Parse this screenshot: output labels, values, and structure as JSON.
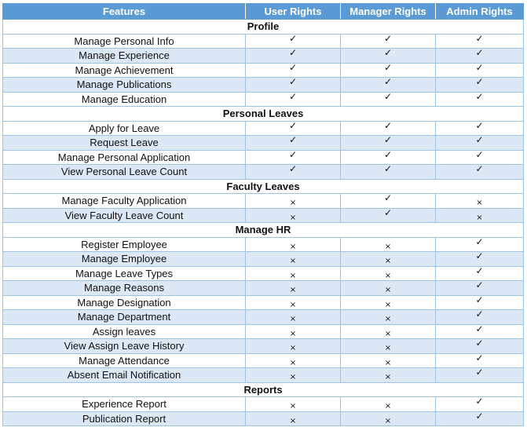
{
  "headers": [
    "Features",
    "User Rights",
    "Manager Rights",
    "Admin Rights"
  ],
  "symbols": {
    "yes": "✓",
    "no": "×"
  },
  "sections": [
    {
      "title": "Profile",
      "rows": [
        {
          "feature": "Manage Personal Info",
          "user": "yes",
          "manager": "yes",
          "admin": "yes"
        },
        {
          "feature": "Manage Experience",
          "user": "yes",
          "manager": "yes",
          "admin": "yes"
        },
        {
          "feature": "Manage Achievement",
          "user": "yes",
          "manager": "yes",
          "admin": "yes"
        },
        {
          "feature": "Manage Publications",
          "user": "yes",
          "manager": "yes",
          "admin": "yes"
        },
        {
          "feature": "Manage Education",
          "user": "yes",
          "manager": "yes",
          "admin": "yes"
        }
      ]
    },
    {
      "title": "Personal Leaves",
      "rows": [
        {
          "feature": "Apply for Leave",
          "user": "yes",
          "manager": "yes",
          "admin": "yes"
        },
        {
          "feature": "Request Leave",
          "user": "yes",
          "manager": "yes",
          "admin": "yes"
        },
        {
          "feature": "Manage Personal Application",
          "user": "yes",
          "manager": "yes",
          "admin": "yes"
        },
        {
          "feature": "View Personal Leave Count",
          "user": "yes",
          "manager": "yes",
          "admin": "yes"
        }
      ]
    },
    {
      "title": "Faculty Leaves",
      "rows": [
        {
          "feature": "Manage Faculty Application",
          "user": "no",
          "manager": "yes",
          "admin": "no"
        },
        {
          "feature": "View Faculty Leave Count",
          "user": "no",
          "manager": "yes",
          "admin": "no"
        }
      ]
    },
    {
      "title": "Manage HR",
      "rows": [
        {
          "feature": "Register Employee",
          "user": "no",
          "manager": "no",
          "admin": "yes"
        },
        {
          "feature": "Manage Employee",
          "user": "no",
          "manager": "no",
          "admin": "yes"
        },
        {
          "feature": "Manage Leave Types",
          "user": "no",
          "manager": "no",
          "admin": "yes"
        },
        {
          "feature": "Manage Reasons",
          "user": "no",
          "manager": "no",
          "admin": "yes"
        },
        {
          "feature": "Manage Designation",
          "user": "no",
          "manager": "no",
          "admin": "yes"
        },
        {
          "feature": "Manage Department",
          "user": "no",
          "manager": "no",
          "admin": "yes"
        },
        {
          "feature": "Assign leaves",
          "user": "no",
          "manager": "no",
          "admin": "yes"
        },
        {
          "feature": "View Assign Leave History",
          "user": "no",
          "manager": "no",
          "admin": "yes"
        },
        {
          "feature": "Manage Attendance",
          "user": "no",
          "manager": "no",
          "admin": "yes"
        },
        {
          "feature": "Absent Email Notification",
          "user": "no",
          "manager": "no",
          "admin": "yes"
        }
      ]
    },
    {
      "title": "Reports",
      "rows": [
        {
          "feature": "Experience Report",
          "user": "no",
          "manager": "no",
          "admin": "yes"
        },
        {
          "feature": "Publication Report",
          "user": "no",
          "manager": "no",
          "admin": "yes"
        }
      ]
    }
  ]
}
